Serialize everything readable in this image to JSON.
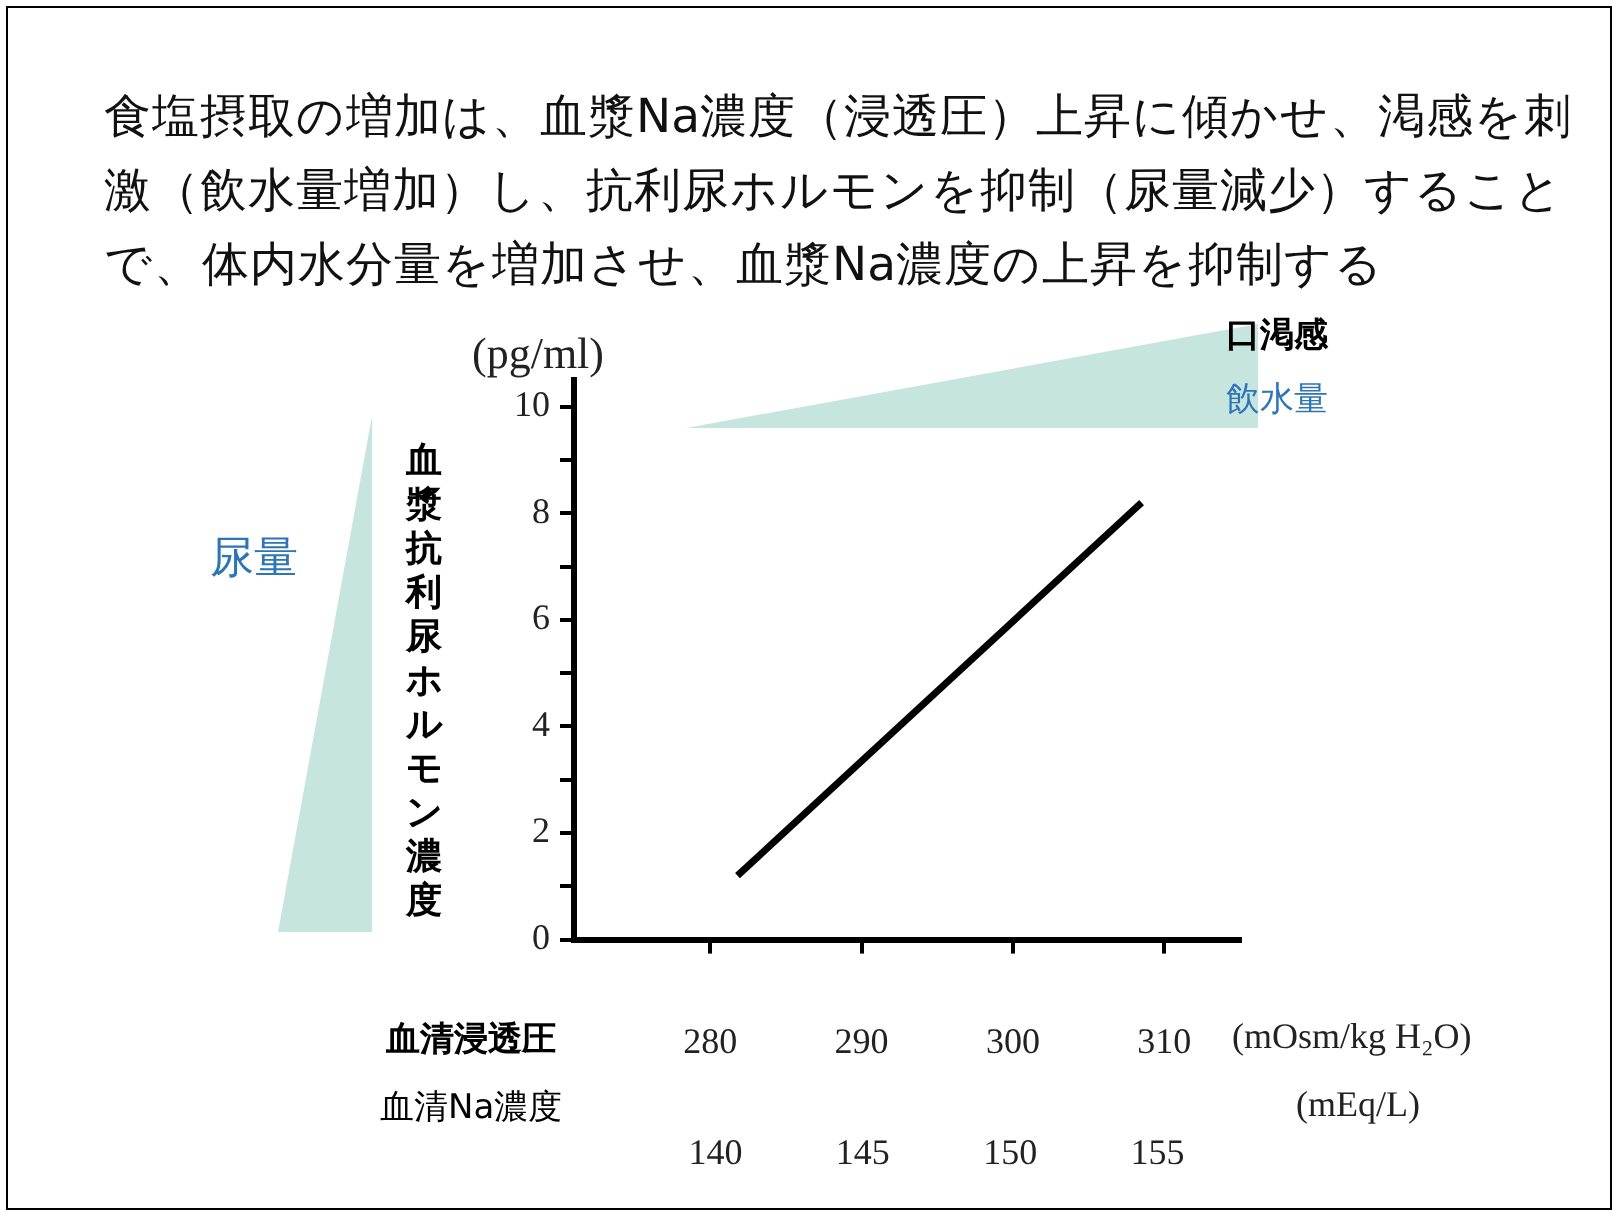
{
  "chart_data": {
    "type": "line",
    "title": "食塩摂取の増加は、血漿Na濃度（浸透圧）上昇に傾かせ、渇感を刺激（飲水量増加）し、抗利尿ホルモンを抑制（尿量減少）することで、体内水分量を増加させ、血漿Na濃度の上昇を抑制する",
    "ylabel": "血漿抗利尿ホルモン濃度",
    "xlabel": "血清浸透圧",
    "x2label": "血清Na濃度",
    "annotations": [
      "(pg/ml)",
      "(mOsm/kg H₂O)",
      "(mEq/L)",
      "尿量",
      "口渇感",
      "飲水量"
    ],
    "series": [
      {
        "color": "#000000",
        "x": [
          281.8,
          308.5
        ],
        "values": [
          1.2,
          8.2
        ]
      }
    ],
    "xlim": [
      271,
      315
    ],
    "xticks": [
      280,
      290,
      300,
      310
    ],
    "x2lim": [
      135.2,
      157.8
    ],
    "x2ticks": [
      140,
      145,
      150,
      155
    ],
    "ylim": [
      0,
      10.5
    ],
    "yticks": [
      0,
      {
        "value": 1,
        "label": null
      },
      2,
      {
        "value": 3,
        "label": null
      },
      4,
      {
        "value": 5,
        "label": null
      },
      6,
      {
        "value": 7,
        "label": null
      },
      8,
      {
        "value": 9,
        "label": null
      },
      10
    ],
    "grid": false,
    "legend": false,
    "marker": "none",
    "line_style": "solid"
  }
}
